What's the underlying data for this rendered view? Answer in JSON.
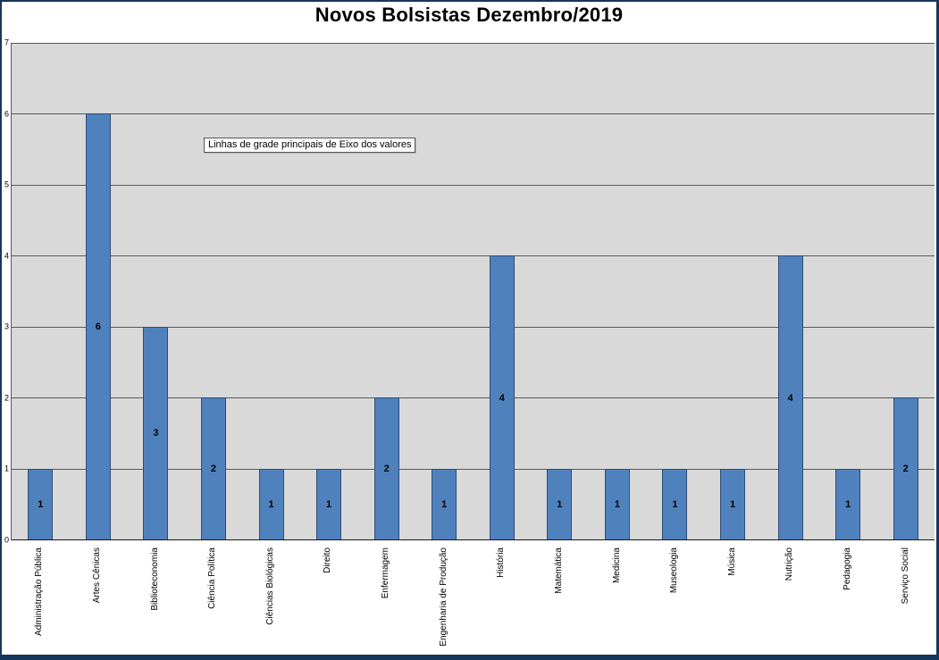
{
  "title": "Novos Bolsistas Dezembro/2019",
  "tooltip": "Linhas de grade principais de Eixo dos valores",
  "colors": {
    "bar_fill": "#4F81BD",
    "bar_border": "#2E4D75",
    "plot_bg": "#D9D9D9",
    "grid_color": "#595959",
    "chart_border": "#16365C"
  },
  "chart_data": {
    "type": "bar",
    "title": "Novos Bolsistas Dezembro/2019",
    "categories": [
      "Administração Pública",
      "Artes Cênicas",
      "Biblioteconomia",
      "Ciência Política",
      "Ciências Biológicas",
      "Direito",
      "Enfermagem",
      "Engenharia de Produção",
      "História",
      "Matemática",
      "Medicina",
      "Museologia",
      "Música",
      "Nutrição",
      "Pedagogia",
      "Serviço Social"
    ],
    "values": [
      1,
      6,
      3,
      2,
      1,
      1,
      2,
      1,
      4,
      1,
      1,
      1,
      1,
      4,
      1,
      2
    ],
    "xlabel": "",
    "ylabel": "",
    "ylim": [
      0,
      7
    ],
    "yticks": [
      0,
      1,
      2,
      3,
      4,
      5,
      6,
      7
    ],
    "grid": true,
    "legend": false,
    "data_labels": "center",
    "annotation": "Linhas de grade principais de Eixo dos valores"
  }
}
